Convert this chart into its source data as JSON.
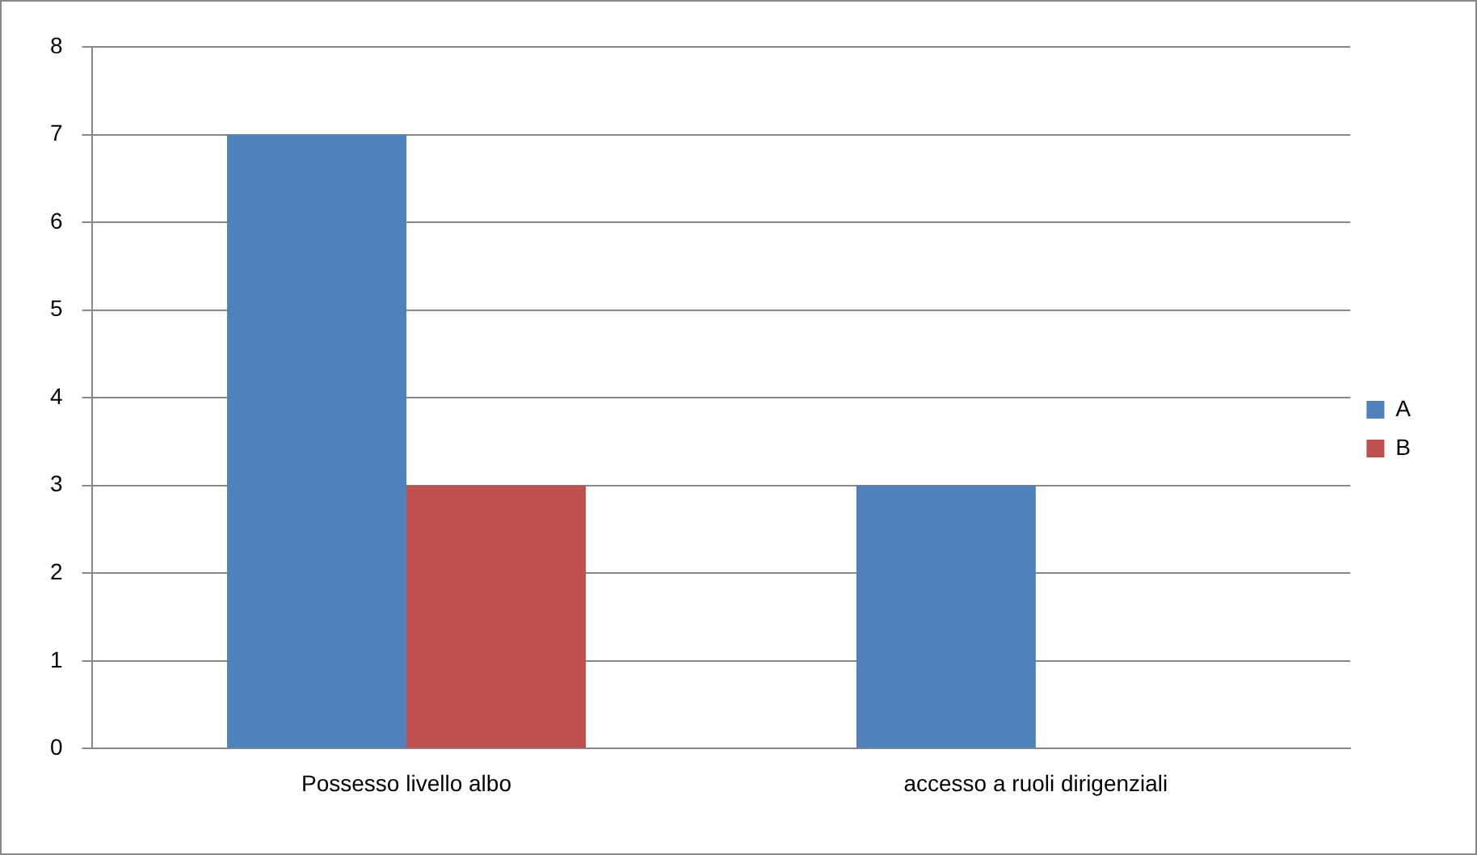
{
  "chart_data": {
    "type": "bar",
    "categories": [
      "Possesso livello albo",
      "accesso a ruoli dirigenziali"
    ],
    "series": [
      {
        "name": "A",
        "color": "#4f81bd",
        "values": [
          7,
          3
        ]
      },
      {
        "name": "B",
        "color": "#c0504d",
        "values": [
          3,
          0
        ]
      }
    ],
    "ylim": [
      0,
      8
    ],
    "yticks": [
      0,
      1,
      2,
      3,
      4,
      5,
      6,
      7,
      8
    ],
    "grid": "y",
    "legend": "right"
  }
}
